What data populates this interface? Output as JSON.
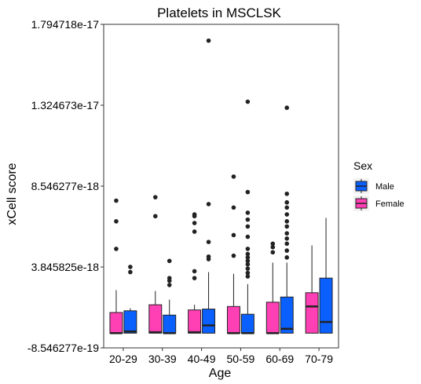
{
  "chart_data": {
    "type": "boxplot",
    "title": "Platelets in MSCLSK",
    "xlabel": "Age",
    "ylabel": "xCell score",
    "categories": [
      "20-29",
      "30-39",
      "40-49",
      "50-59",
      "60-69",
      "70-79"
    ],
    "y_ticks": [
      -8.546277e-19,
      3.845825e-18,
      8.546277e-18,
      1.324673e-17,
      1.794718e-17
    ],
    "y_tick_labels": [
      "-8.546277e-19",
      "3.845825e-18",
      "8.546277e-18",
      "1.324673e-17",
      "1.794718e-17"
    ],
    "ylim": [
      -8.546277e-19,
      1.794718e-17
    ],
    "grid": false,
    "legend": {
      "title": "Sex",
      "position": "right",
      "entries": [
        {
          "name": "Male",
          "color": "#0a5fff"
        },
        {
          "name": "Female",
          "color": "#ff3fb4"
        }
      ]
    },
    "series": [
      {
        "name": "Female",
        "color": "#ff3fb4",
        "boxes": [
          {
            "whisker_low": 0.0,
            "q1": 0.0,
            "median": 0.0,
            "q3": 1.2e-18,
            "whisker_high": 2.5e-18,
            "outliers": [
              4.9e-18,
              6.5e-18,
              7.7e-18
            ]
          },
          {
            "whisker_low": 0.0,
            "q1": 0.0,
            "median": 5e-20,
            "q3": 1.65e-18,
            "whisker_high": 2.45e-18,
            "outliers": [
              6.8e-18,
              7.9e-18
            ]
          },
          {
            "whisker_low": 0.0,
            "q1": 0.0,
            "median": 5e-20,
            "q3": 1.35e-18,
            "whisker_high": 1.65e-18,
            "outliers": [
              3.2e-18,
              3.6e-18,
              5.9e-18,
              6.4e-18,
              6.8e-18,
              6.9e-18
            ]
          },
          {
            "whisker_low": 0.0,
            "q1": 0.0,
            "median": 0.0,
            "q3": 1.55e-18,
            "whisker_high": 3.45e-18,
            "outliers": [
              4.5e-18,
              5.7e-18,
              7.3e-18,
              9.1e-18
            ]
          },
          {
            "whisker_low": 0.0,
            "q1": 0.0,
            "median": 0.0,
            "q3": 1.8e-18,
            "whisker_high": 4.1e-18,
            "outliers": [
              4.7e-18,
              5e-18,
              5.2e-18
            ]
          },
          {
            "whisker_low": 0.0,
            "q1": 0.0,
            "median": 1.55e-18,
            "q3": 2.35e-18,
            "whisker_high": 5.1e-18,
            "outliers": []
          }
        ]
      },
      {
        "name": "Male",
        "color": "#0a5fff",
        "boxes": [
          {
            "whisker_low": 0.0,
            "q1": 0.0,
            "median": 1e-19,
            "q3": 1.3e-18,
            "whisker_high": 1.45e-18,
            "outliers": [
              3.55e-18,
              3.85e-18
            ]
          },
          {
            "whisker_low": 0.0,
            "q1": 0.0,
            "median": 0.0,
            "q3": 1.05e-18,
            "whisker_high": 1.95e-18,
            "outliers": [
              2.8e-18,
              3.05e-18,
              3.2e-18,
              4.2e-18
            ]
          },
          {
            "whisker_low": 0.0,
            "q1": 0.0,
            "median": 4.5e-19,
            "q3": 1.4e-18,
            "whisker_high": 3.55e-18,
            "outliers": [
              4.3e-18,
              4.45e-18,
              5.3e-18,
              7.5e-18,
              1.7e-17
            ]
          },
          {
            "whisker_low": 0.0,
            "q1": 0.0,
            "median": 0.0,
            "q3": 1.1e-18,
            "whisker_high": 2.85e-18,
            "outliers": [
              3.3e-18,
              3.5e-18,
              3.75e-18,
              4e-18,
              4.2e-18,
              4.4e-18,
              4.6e-18,
              4.9e-18,
              5.6e-18,
              6.2e-18,
              6.6e-18,
              7e-18,
              8.2e-18,
              1.345e-17
            ]
          },
          {
            "whisker_low": 0.0,
            "q1": 0.0,
            "median": 2.5e-19,
            "q3": 2.1e-18,
            "whisker_high": 4.1e-18,
            "outliers": [
              4.4e-18,
              4.8e-18,
              5.2e-18,
              5.5e-18,
              5.8e-18,
              6.2e-18,
              6.5e-18,
              6.9e-18,
              7.3e-18,
              7.6e-18,
              8.1e-18,
              1.31e-17
            ]
          },
          {
            "whisker_low": 0.0,
            "q1": 0.0,
            "median": 6.5e-19,
            "q3": 3.2e-18,
            "whisker_high": 6.7e-18,
            "outliers": []
          }
        ]
      }
    ]
  }
}
